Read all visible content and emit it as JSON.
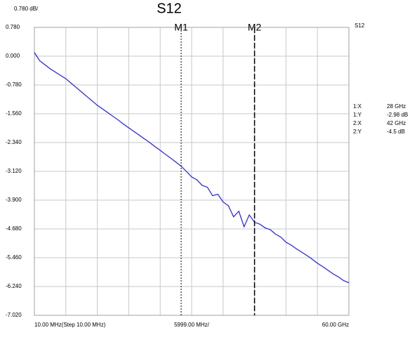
{
  "chart_data": {
    "type": "line",
    "title": "S12",
    "scale_label": "0.780 dB/",
    "x_labels": [
      "10.00 MHz(Step 10.00 MHz)",
      "5999.00 MHz/",
      "60.00 GHz"
    ],
    "x": [
      0.01,
      1,
      2,
      3,
      4,
      5,
      6,
      7,
      8,
      9,
      10,
      11,
      12,
      13,
      14,
      15,
      16,
      17,
      18,
      19,
      20,
      21,
      22,
      23,
      24,
      25,
      26,
      27,
      28,
      29,
      30,
      31,
      32,
      33,
      34,
      35,
      36,
      37,
      38,
      39,
      40,
      41,
      42,
      43,
      44,
      45,
      46,
      47,
      48,
      49,
      50,
      51,
      52,
      53,
      54,
      55,
      56,
      57,
      58,
      59,
      60
    ],
    "series": [
      {
        "name": "S12",
        "color": "#1f1fe0",
        "values": [
          0.1,
          -0.12,
          -0.23,
          -0.34,
          -0.43,
          -0.52,
          -0.61,
          -0.73,
          -0.85,
          -0.97,
          -1.09,
          -1.21,
          -1.33,
          -1.43,
          -1.53,
          -1.63,
          -1.73,
          -1.84,
          -1.94,
          -2.04,
          -2.14,
          -2.24,
          -2.34,
          -2.45,
          -2.55,
          -2.66,
          -2.76,
          -2.87,
          -2.98,
          -3.12,
          -3.27,
          -3.35,
          -3.5,
          -3.55,
          -3.78,
          -3.74,
          -3.95,
          -4.05,
          -4.35,
          -4.2,
          -4.62,
          -4.3,
          -4.5,
          -4.55,
          -4.65,
          -4.7,
          -4.82,
          -4.9,
          -5.04,
          -5.12,
          -5.22,
          -5.31,
          -5.4,
          -5.5,
          -5.61,
          -5.7,
          -5.8,
          -5.9,
          -5.98,
          -6.08,
          -6.14
        ]
      }
    ],
    "xlim": [
      0.01,
      60
    ],
    "ylim": [
      -7.02,
      0.78
    ],
    "yticks": [
      {
        "value": 0.78,
        "label": "0.780"
      },
      {
        "value": 0,
        "label": "0.000"
      },
      {
        "value": -0.78,
        "label": "-0.780"
      },
      {
        "value": -1.56,
        "label": "-1.560"
      },
      {
        "value": -2.34,
        "label": "-2.340"
      },
      {
        "value": -3.12,
        "label": "-3.120"
      },
      {
        "value": -3.9,
        "label": "-3.900"
      },
      {
        "value": -4.68,
        "label": "-4.680"
      },
      {
        "value": -5.46,
        "label": "-5.460"
      },
      {
        "value": -6.24,
        "label": "-6.240"
      },
      {
        "value": -7.02,
        "label": "-7.020"
      }
    ],
    "grid": true,
    "markers": [
      {
        "name": "M1",
        "x": 28,
        "style": "dotted"
      },
      {
        "name": "M2",
        "x": 42,
        "style": "dashed"
      }
    ],
    "readout": [
      {
        "label": "1:X",
        "value": "28 GHz",
        "color": "#000000"
      },
      {
        "label": "1:Y",
        "value": "-2.98 dB",
        "color": "#1f1fe0"
      },
      {
        "label": "2:X",
        "value": "42 GHz",
        "color": "#000000"
      },
      {
        "label": "2:Y",
        "value": "-4.5 dB",
        "color": "#1f1fe0"
      }
    ]
  }
}
